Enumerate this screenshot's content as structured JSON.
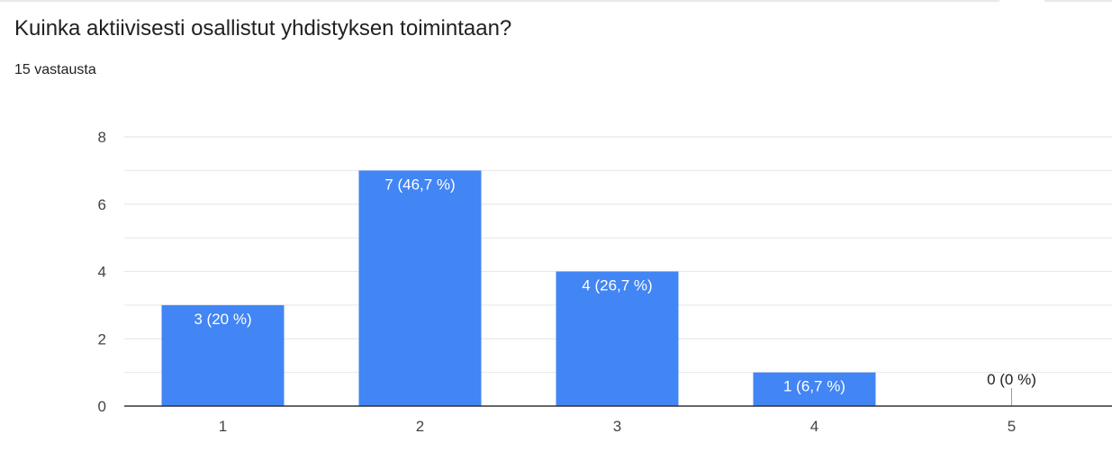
{
  "question": {
    "title": "Kuinka aktiivisesti osallistut yhdistyksen toimintaan?",
    "response_count": "15 vastausta"
  },
  "colors": {
    "bar": "#4285f4",
    "grid": "#e8e8e8",
    "axis": "#333333",
    "tick_text": "#444444",
    "label_inside": "#ffffff",
    "label_outside": "#202124"
  },
  "chart_data": {
    "type": "bar",
    "title": "",
    "xlabel": "",
    "ylabel": "",
    "categories": [
      "1",
      "2",
      "3",
      "4",
      "5"
    ],
    "values": [
      3,
      7,
      4,
      1,
      0
    ],
    "data_labels": [
      "3 (20 %)",
      "7 (46,7 %)",
      "4 (26,7 %)",
      "1 (6,7 %)",
      "0 (0 %)"
    ],
    "ylim": [
      0,
      8
    ],
    "y_ticks": [
      "0",
      "2",
      "4",
      "6",
      "8"
    ],
    "grid": true,
    "legend": "none"
  }
}
